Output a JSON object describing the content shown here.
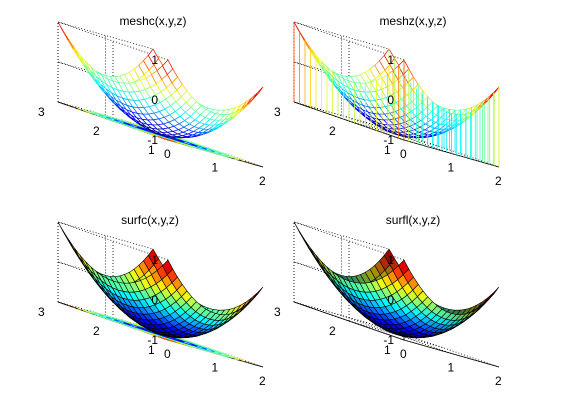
{
  "figure": {
    "background": "#ffffff"
  },
  "chart_data": [
    {
      "type": "surface",
      "variant": "mesh with contour",
      "title": "meshc(x,y,z)",
      "function": "z = (x-1)^2 + (y-1)^2 - 1, x,y in [0,2]",
      "x_ticks": [
        "0",
        "1",
        "2"
      ],
      "y_ticks": [
        "1",
        "2",
        "3"
      ],
      "z_ticks": [
        "-1",
        "0",
        "1"
      ],
      "zlim": [
        -1,
        1
      ],
      "colormap": "jet",
      "grid": true,
      "contour_below": true
    },
    {
      "type": "surface",
      "variant": "mesh with curtain",
      "title": "meshz(x,y,z)",
      "function": "z = (x-1)^2 + (y-1)^2 - 1, x,y in [0,2]",
      "x_ticks": [
        "0",
        "1",
        "2"
      ],
      "y_ticks": [
        "1",
        "2",
        "3"
      ],
      "z_ticks": [
        "-1",
        "0",
        "1"
      ],
      "zlim": [
        -1,
        1
      ],
      "colormap": "jet",
      "grid": true,
      "curtain": true
    },
    {
      "type": "surface",
      "variant": "filled surface with contour",
      "title": "surfc(x,y,z)",
      "function": "z = (x-1)^2 + (y-1)^2 - 1, x,y in [0,2]",
      "x_ticks": [
        "0",
        "1",
        "2"
      ],
      "y_ticks": [
        "1",
        "2",
        "3"
      ],
      "z_ticks": [
        "-1",
        "0",
        "1"
      ],
      "zlim": [
        -1,
        1
      ],
      "colormap": "jet",
      "grid": true,
      "contour_below": true
    },
    {
      "type": "surface",
      "variant": "lit surface",
      "title": "surfl(x,y,z)",
      "function": "z = (x-1)^2 + (y-1)^2 - 1, x,y in [0,2]",
      "x_ticks": [
        "0",
        "1",
        "2"
      ],
      "y_ticks": [
        "1",
        "2",
        "3"
      ],
      "z_ticks": [
        "-1",
        "0",
        "1"
      ],
      "zlim": [
        -1,
        1
      ],
      "colormap": "jet",
      "grid": true,
      "lighting": true
    }
  ]
}
